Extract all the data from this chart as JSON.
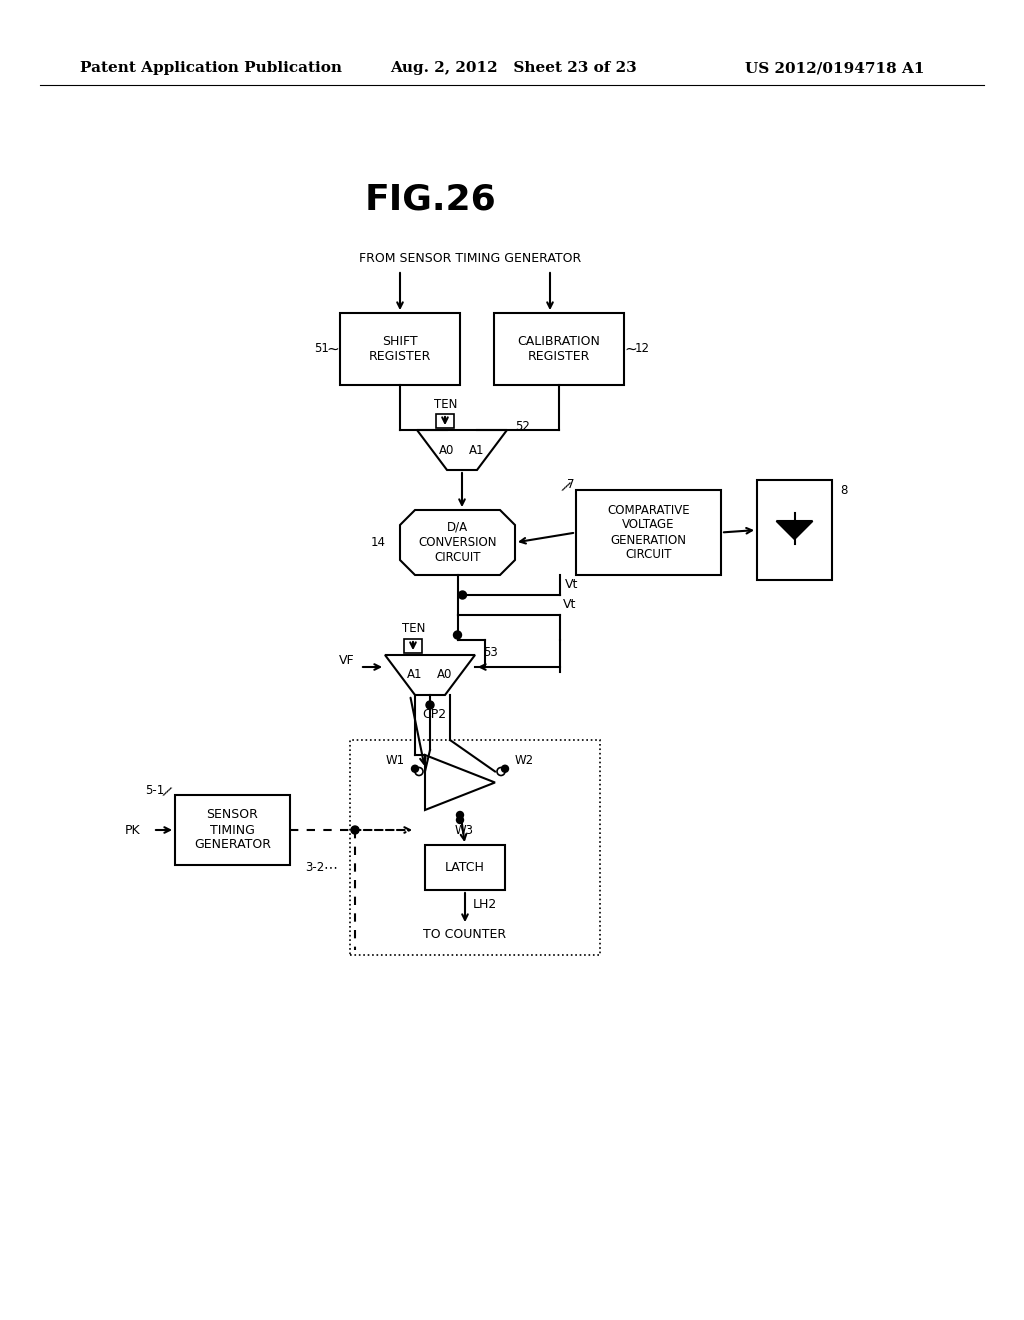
{
  "title": "FIG.26",
  "header_left": "Patent Application Publication",
  "header_mid": "Aug. 2, 2012   Sheet 23 of 23",
  "header_right": "US 2012/0194718 A1",
  "bg_color": "#ffffff",
  "text_color": "#000000",
  "fig_title_fontsize": 22,
  "header_fontsize": 11,
  "label_fontsize": 9,
  "small_fontsize": 8
}
